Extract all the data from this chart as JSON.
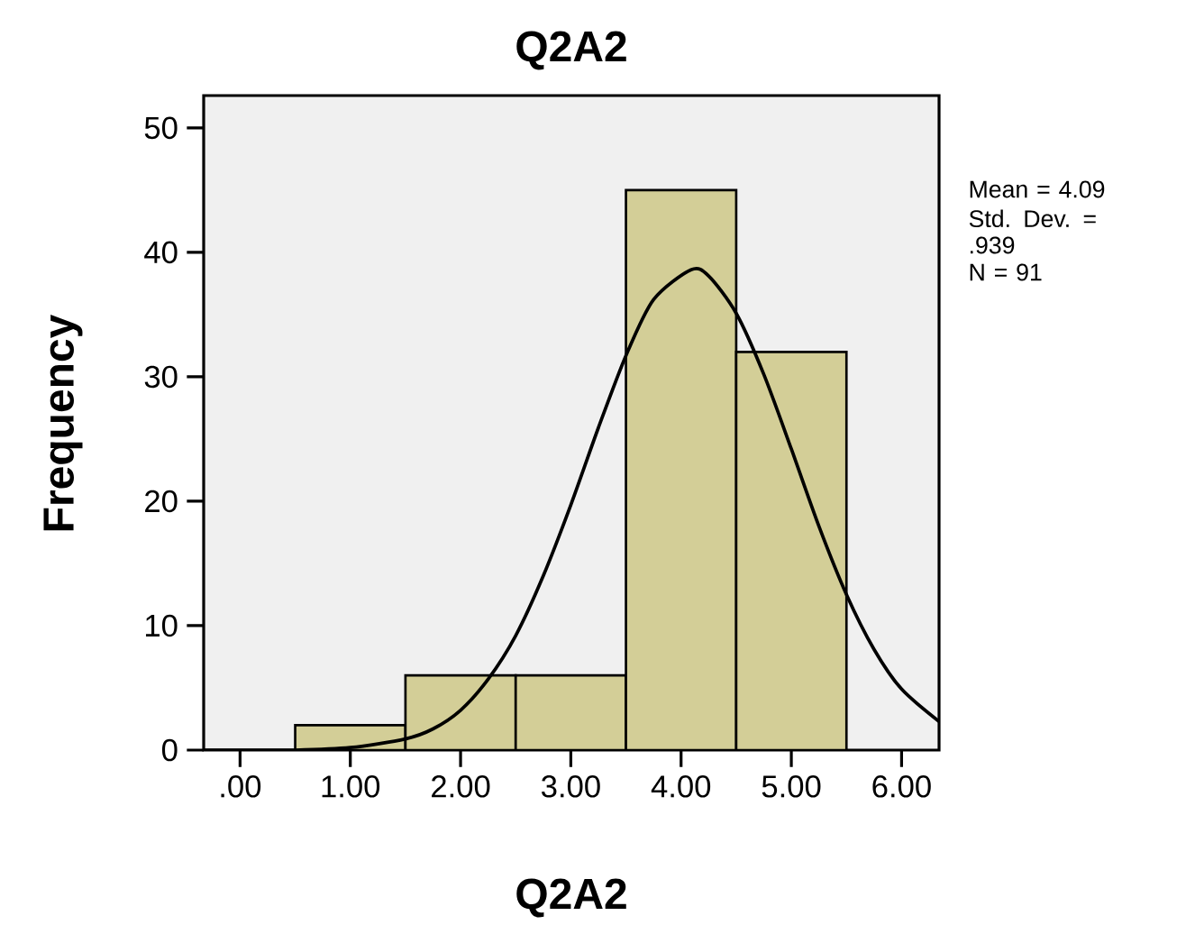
{
  "chart_data": {
    "type": "histogram",
    "title": "Q2A2",
    "xlabel": "Q2A2",
    "ylabel": "Frequency",
    "bins": [
      0.5,
      1.5,
      2.5,
      3.5,
      4.5,
      5.5
    ],
    "values": [
      2,
      6,
      6,
      45,
      32
    ],
    "color": "#d3ce97",
    "series": [
      {
        "type": "line",
        "color": "#000000",
        "x": [
          -0.33,
          0,
          0.5,
          1,
          1.5,
          1.75,
          2,
          2.25,
          2.5,
          2.75,
          3,
          3.25,
          3.5,
          3.75,
          4.09,
          4.25,
          4.5,
          4.75,
          5,
          5.25,
          5.5,
          5.75,
          6,
          6.34
        ],
        "values": [
          0,
          0,
          0,
          0.2,
          0.9,
          1.7,
          3.2,
          5.7,
          9.2,
          14,
          19.7,
          25.9,
          31.7,
          36.2,
          38.6,
          38.1,
          35.1,
          30.2,
          24.2,
          18,
          12.5,
          8.1,
          4.9,
          2.3
        ]
      }
    ],
    "xlim": [
      -0.33,
      6.34
    ],
    "ylim": [
      0,
      52.6
    ],
    "xticks": [
      {
        "value": 0,
        "label": ".00"
      },
      {
        "value": 1,
        "label": "1.00"
      },
      {
        "value": 2,
        "label": "2.00"
      },
      {
        "value": 3,
        "label": "3.00"
      },
      {
        "value": 4,
        "label": "4.00"
      },
      {
        "value": 5,
        "label": "5.00"
      },
      {
        "value": 6,
        "label": "6.00"
      }
    ],
    "yticks": [
      0,
      10,
      20,
      30,
      40,
      50
    ],
    "annotations": [
      "Mean = 4.09",
      "Std. Dev. = .939",
      "N = 91"
    ],
    "grid": false
  }
}
